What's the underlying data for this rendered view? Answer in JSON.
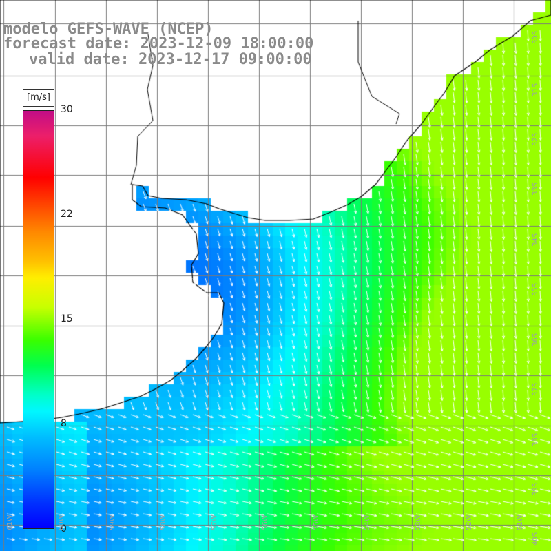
{
  "title": {
    "line1": "modelo GEFS-WAVE (NCEP)",
    "line2": "forecast date: 2023-12-09 18:00:00",
    "line3": "valid date: 2023-12-17 09:00:00"
  },
  "colorbar": {
    "units": "[m/s]",
    "ticks": [
      {
        "label": "30",
        "value": 30
      },
      {
        "label": "22",
        "value": 22
      },
      {
        "label": "15",
        "value": 15
      },
      {
        "label": "8",
        "value": 8
      },
      {
        "label": "0",
        "value": 0
      }
    ],
    "min": 0,
    "max": 30
  },
  "map": {
    "projection": "regular lat-lon grid",
    "grid": true,
    "land_color": "#ffffff",
    "coast_color": "#000000",
    "vector_color": "#ffffff",
    "lon_labels": [
      "61W",
      "60W",
      "59W",
      "58W",
      "57W",
      "56W",
      "55W",
      "54W",
      "53W",
      "52W",
      "51W"
    ],
    "lat_labels": [
      "30S",
      "31S",
      "32S",
      "33S",
      "34S",
      "35S",
      "36S",
      "37S",
      "38S",
      "39S",
      "40S"
    ]
  },
  "colors": {
    "title": "#8a8a8a",
    "grid": "#7a7a7a"
  }
}
